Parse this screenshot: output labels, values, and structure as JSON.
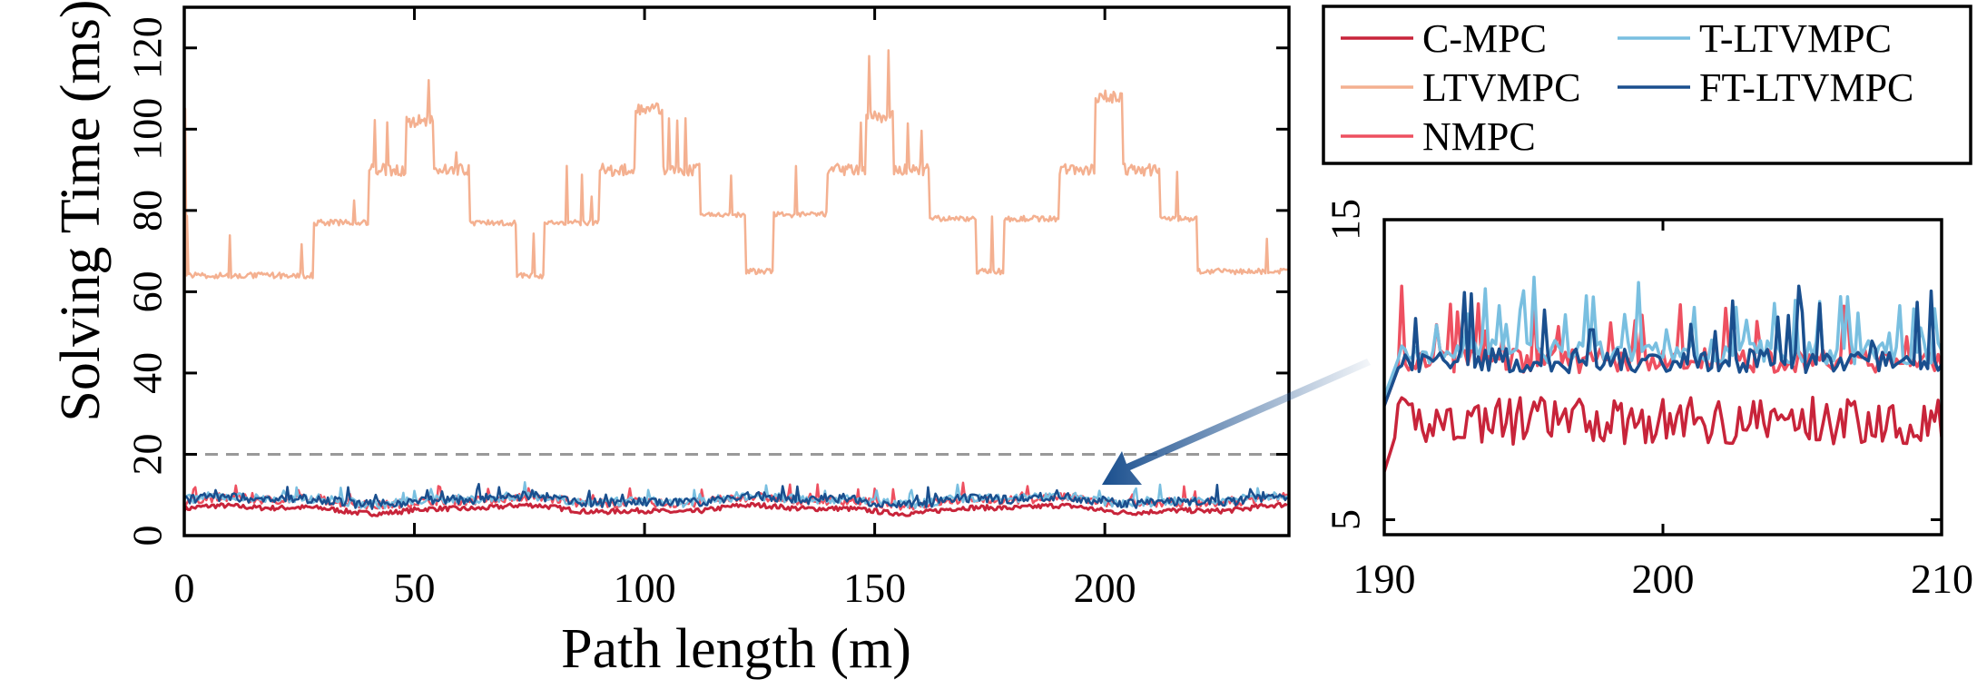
{
  "chart_data": [
    {
      "type": "line",
      "name": "main",
      "xlabel": "Path length (m)",
      "ylabel": "Solving Time (ms)",
      "xlim": [
        0,
        240
      ],
      "ylim": [
        0,
        130
      ],
      "xticks": [
        0,
        50,
        100,
        150,
        200
      ],
      "xtick_labels": [
        "0",
        "50",
        "100",
        "150",
        "200"
      ],
      "yticks": [
        0,
        20,
        40,
        60,
        80,
        100,
        120
      ],
      "ytick_labels": [
        "0",
        "20",
        "40",
        "60",
        "80",
        "100",
        "120"
      ],
      "reference_line": {
        "y": 20,
        "style": "dashed"
      },
      "ltvmpc_steps": {
        "x": [
          0,
          1,
          25,
          28,
          40,
          48,
          54,
          62,
          72,
          78,
          90,
          98,
          104,
          112,
          122,
          128,
          140,
          148,
          154,
          162,
          172,
          178,
          190,
          198,
          204,
          212,
          220,
          240
        ],
        "y": [
          64,
          64,
          64,
          77,
          90,
          102,
          90,
          77,
          64,
          77,
          90,
          105,
          90,
          79,
          65,
          79,
          90,
          103,
          90,
          78,
          65,
          78,
          90,
          108,
          90,
          78,
          65,
          65
        ]
      },
      "series": [
        {
          "name": "C-MPC",
          "color": "#c8243a",
          "base": 6.5
        },
        {
          "name": "LTVMPC",
          "color": "#f4b090",
          "base": 64
        },
        {
          "name": "NMPC",
          "color": "#ee5060",
          "base": 8.5
        },
        {
          "name": "T-LTVMPC",
          "color": "#79bfe0",
          "base": 8.8
        },
        {
          "name": "FT-LTVMPC",
          "color": "#1a4f8e",
          "base": 8.7
        }
      ]
    },
    {
      "type": "line",
      "name": "inset",
      "xlim": [
        190,
        210
      ],
      "ylim": [
        4.5,
        15
      ],
      "xticks": [
        190,
        200,
        210
      ],
      "xtick_labels": [
        "190",
        "200",
        "210"
      ],
      "yticks": [
        5,
        15
      ],
      "ytick_labels": [
        "5",
        "15"
      ],
      "series": [
        {
          "name": "C-MPC",
          "color": "#c8243a",
          "base": 8.3
        },
        {
          "name": "NMPC",
          "color": "#ee5060",
          "base": 10.3
        },
        {
          "name": "T-LTVMPC",
          "color": "#79bfe0",
          "base": 10.6
        },
        {
          "name": "FT-LTVMPC",
          "color": "#1a4f8e",
          "base": 10.3
        }
      ]
    }
  ],
  "legend": {
    "entries": [
      {
        "label": "C-MPC",
        "color": "#c8243a"
      },
      {
        "label": "T-LTVMPC",
        "color": "#79bfe0"
      },
      {
        "label": "LTVMPC",
        "color": "#f4b090"
      },
      {
        "label": "FT-LTVMPC",
        "color": "#1a4f8e"
      },
      {
        "label": "NMPC",
        "color": "#ee5060"
      }
    ]
  },
  "colors": {
    "arrow": "#1a4f8e",
    "reference_line": "#999999",
    "axes": "#000000"
  }
}
